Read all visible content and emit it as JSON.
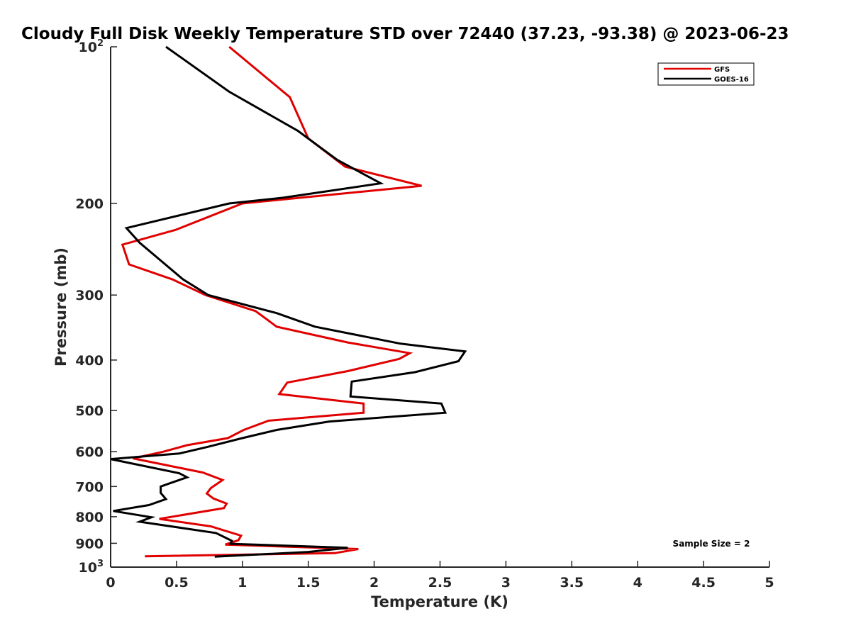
{
  "chart_data": {
    "type": "line",
    "title": "Cloudy Full Disk Weekly Temperature STD over 72440 (37.23, -93.38) @ 2023-06-23",
    "xlabel": "Temperature (K)",
    "ylabel": "Pressure (mb)",
    "xlim": [
      0,
      5
    ],
    "ylim": [
      100,
      1000
    ],
    "y_scale": "log",
    "y_reversed": true,
    "grid": false,
    "x_ticks": [
      "0",
      "0.5",
      "1",
      "1.5",
      "2",
      "2.5",
      "3",
      "3.5",
      "4",
      "4.5",
      "5"
    ],
    "y_ticks": [
      {
        "value": 100,
        "base": "10",
        "exp": "2"
      },
      {
        "value": 200,
        "label": "200"
      },
      {
        "value": 300,
        "label": "300"
      },
      {
        "value": 400,
        "label": "400"
      },
      {
        "value": 500,
        "label": "500"
      },
      {
        "value": 600,
        "label": "600"
      },
      {
        "value": 700,
        "label": "700"
      },
      {
        "value": 800,
        "label": "800"
      },
      {
        "value": 900,
        "label": "900"
      },
      {
        "value": 1000,
        "base": "10",
        "exp": "3"
      }
    ],
    "legend_position": "top-right",
    "annotation": "Sample Size = 2",
    "series": [
      {
        "name": "GFS",
        "color": "#e00000",
        "points": [
          [
            0.9,
            100
          ],
          [
            1.36,
            125
          ],
          [
            1.5,
            150
          ],
          [
            1.78,
            170
          ],
          [
            2.36,
            185
          ],
          [
            1.0,
            200
          ],
          [
            0.49,
            225
          ],
          [
            0.09,
            240
          ],
          [
            0.14,
            262
          ],
          [
            0.47,
            280
          ],
          [
            0.72,
            300
          ],
          [
            1.1,
            322
          ],
          [
            1.26,
            345
          ],
          [
            1.8,
            370
          ],
          [
            2.27,
            388
          ],
          [
            2.19,
            398
          ],
          [
            1.8,
            420
          ],
          [
            1.34,
            442
          ],
          [
            1.28,
            465
          ],
          [
            1.92,
            485
          ],
          [
            1.92,
            505
          ],
          [
            1.2,
            523
          ],
          [
            1.01,
            545
          ],
          [
            0.89,
            565
          ],
          [
            0.58,
            583
          ],
          [
            0.4,
            600
          ],
          [
            0.17,
            618
          ],
          [
            0.7,
            658
          ],
          [
            0.85,
            680
          ],
          [
            0.76,
            705
          ],
          [
            0.73,
            722
          ],
          [
            0.78,
            738
          ],
          [
            0.88,
            755
          ],
          [
            0.86,
            770
          ],
          [
            0.37,
            808
          ],
          [
            0.76,
            835
          ],
          [
            0.99,
            870
          ],
          [
            0.97,
            888
          ],
          [
            0.87,
            905
          ],
          [
            1.88,
            923
          ],
          [
            1.7,
            940
          ],
          [
            0.26,
            953
          ]
        ]
      },
      {
        "name": "GOES-16",
        "color": "#000000",
        "points": [
          [
            0.42,
            100
          ],
          [
            0.9,
            122
          ],
          [
            1.42,
            145
          ],
          [
            1.72,
            165
          ],
          [
            2.05,
            183
          ],
          [
            1.31,
            195
          ],
          [
            0.9,
            200
          ],
          [
            0.12,
            223
          ],
          [
            0.22,
            238
          ],
          [
            0.36,
            255
          ],
          [
            0.55,
            280
          ],
          [
            0.74,
            300
          ],
          [
            1.26,
            325
          ],
          [
            1.55,
            345
          ],
          [
            2.2,
            372
          ],
          [
            2.69,
            385
          ],
          [
            2.64,
            402
          ],
          [
            2.31,
            422
          ],
          [
            1.83,
            440
          ],
          [
            1.82,
            470
          ],
          [
            2.51,
            485
          ],
          [
            2.54,
            505
          ],
          [
            1.66,
            525
          ],
          [
            1.26,
            545
          ],
          [
            1.0,
            565
          ],
          [
            0.73,
            588
          ],
          [
            0.52,
            605
          ],
          [
            0.0,
            620
          ],
          [
            0.52,
            660
          ],
          [
            0.58,
            672
          ],
          [
            0.45,
            690
          ],
          [
            0.38,
            700
          ],
          [
            0.38,
            720
          ],
          [
            0.42,
            740
          ],
          [
            0.29,
            760
          ],
          [
            0.02,
            780
          ],
          [
            0.31,
            802
          ],
          [
            0.22,
            818
          ],
          [
            0.8,
            860
          ],
          [
            0.92,
            890
          ],
          [
            0.91,
            902
          ],
          [
            1.8,
            918
          ],
          [
            1.5,
            935
          ],
          [
            0.79,
            955
          ]
        ]
      }
    ]
  }
}
